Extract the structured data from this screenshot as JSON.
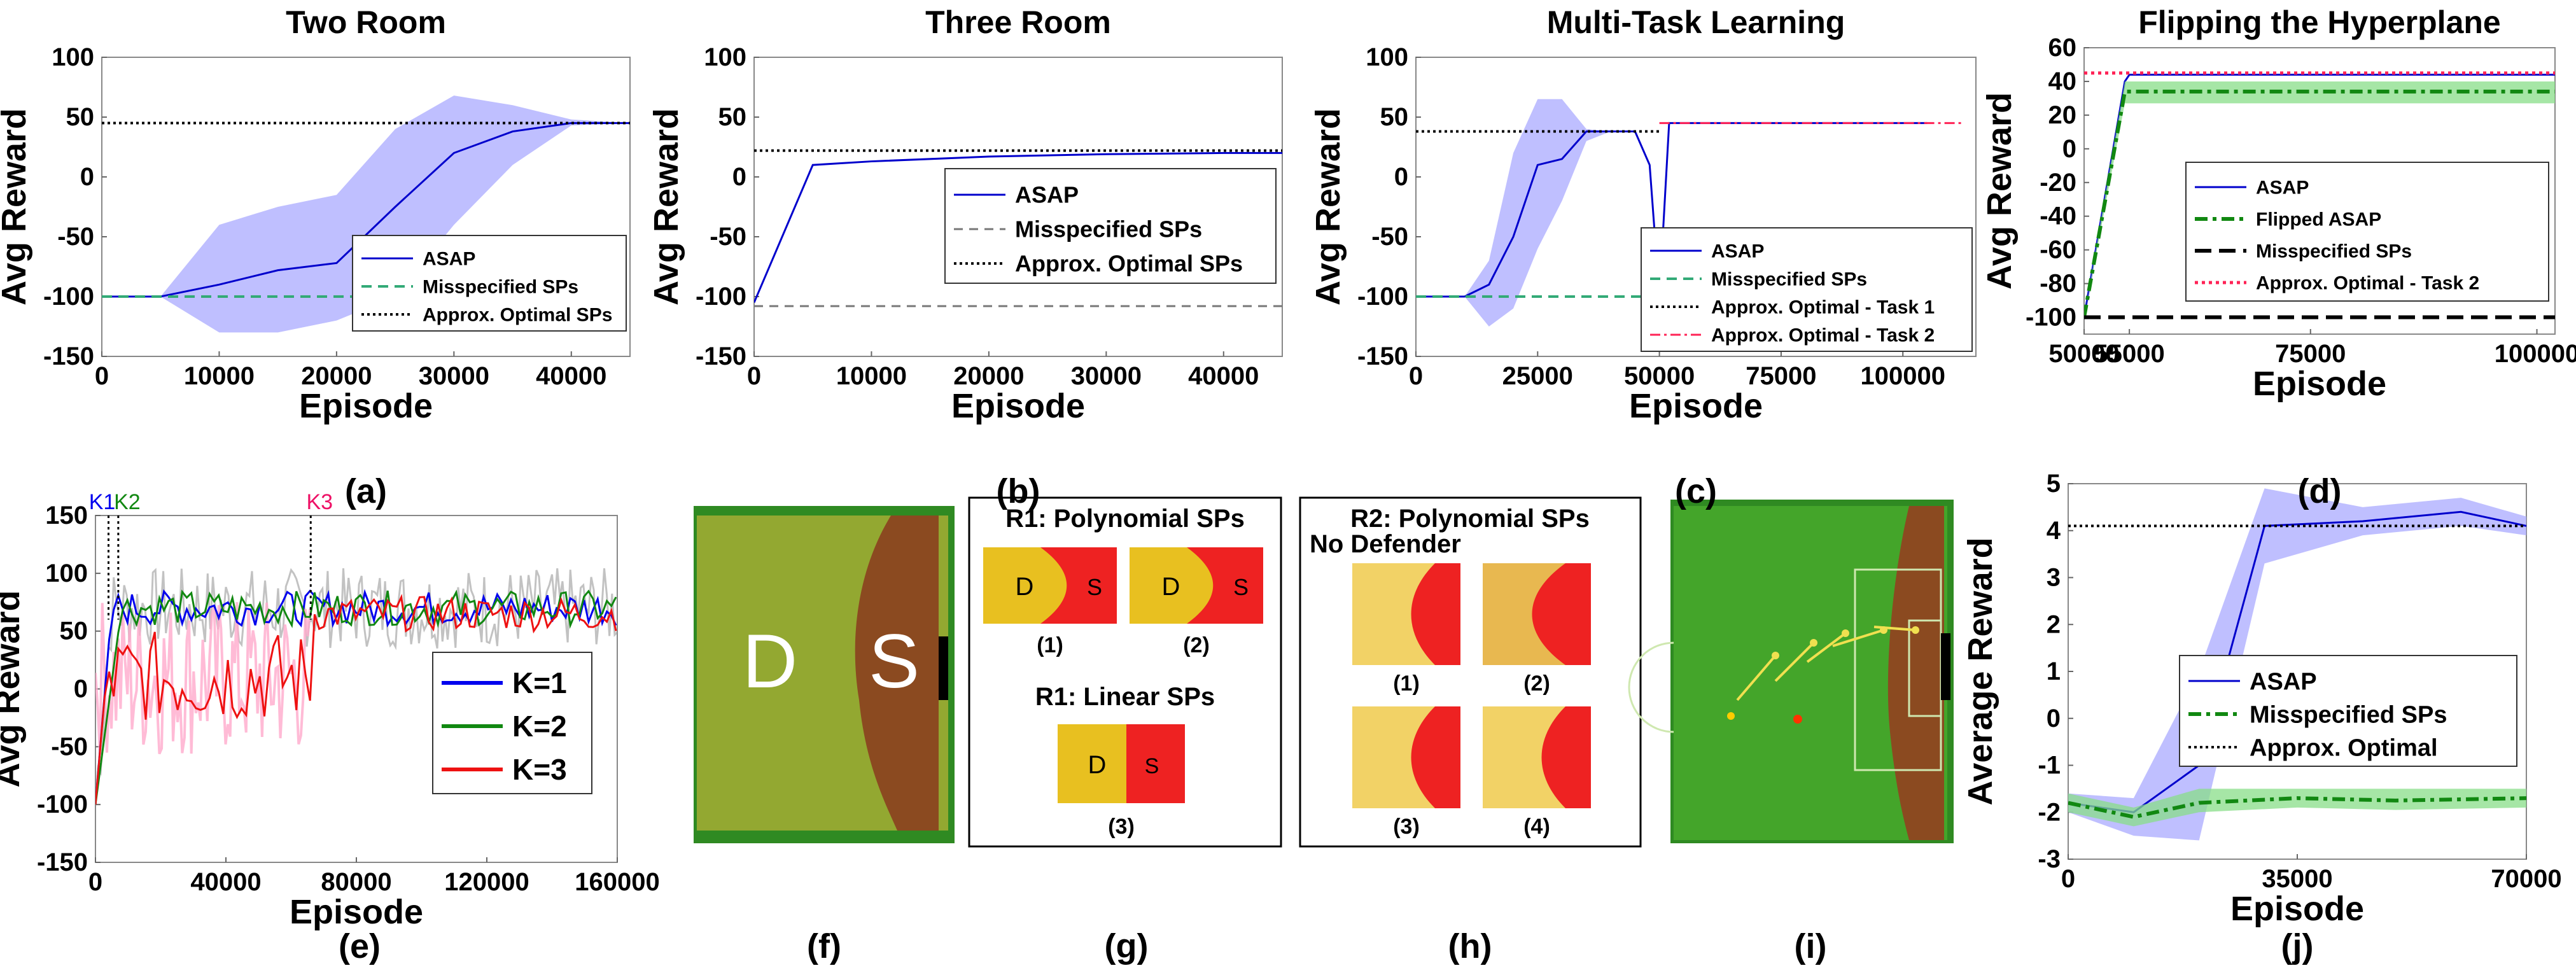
{
  "panel_letters": [
    "(a)",
    "(b)",
    "(c)",
    "(d)",
    "(e)",
    "(f)",
    "(g)",
    "(h)",
    "(i)",
    "(j)"
  ],
  "colors": {
    "asap": "#0000cc",
    "asap_band": "#aaaaff",
    "misspecified_dash": "#33aa77",
    "optimal": "#000000",
    "task2": "#ff2255",
    "flipped": "#118811",
    "flipped_band": "#88dd88",
    "k1": "#0000ee",
    "k2": "#118811",
    "k3": "#ee1111",
    "k3_band": "#ffaacc",
    "field_green": "#44aa22",
    "domain_d_yellow": "#e8c020",
    "domain_s_brown": "#8b4a20",
    "domain_s_red": "#ee2222",
    "soft_yellow": "#f2d266"
  },
  "chart_data": [
    {
      "id": "a",
      "type": "line",
      "title": "Two Room",
      "xlabel": "Episode",
      "ylabel": "Avg Reward",
      "xlim": [
        0,
        45000
      ],
      "ylim": [
        -150,
        100
      ],
      "xticks": [
        0,
        10000,
        20000,
        30000,
        40000
      ],
      "yticks": [
        -150,
        -100,
        -50,
        0,
        50,
        100
      ],
      "legend": [
        "ASAP",
        "Misspecified SPs",
        "Approx. Optimal SPs"
      ],
      "legend_position": "bottom-right",
      "series": [
        {
          "name": "ASAP",
          "style": "solid-blue-band",
          "x": [
            0,
            5000,
            10000,
            15000,
            20000,
            25000,
            30000,
            35000,
            40000,
            45000
          ],
          "y": [
            -100,
            -100,
            -90,
            -78,
            -72,
            -25,
            20,
            38,
            45,
            45
          ],
          "lower": [
            -100,
            -100,
            -130,
            -130,
            -120,
            -100,
            -40,
            10,
            43,
            45
          ],
          "upper": [
            -100,
            -100,
            -40,
            -25,
            -15,
            40,
            68,
            60,
            48,
            45
          ]
        },
        {
          "name": "Misspecified SPs",
          "style": "dashed-green",
          "x": [
            0,
            25000
          ],
          "y": [
            -100,
            -100
          ]
        },
        {
          "name": "Approx. Optimal SPs",
          "style": "dotted-black",
          "x": [
            0,
            45000
          ],
          "y": [
            45,
            45
          ]
        }
      ]
    },
    {
      "id": "b",
      "type": "line",
      "title": "Three Room",
      "xlabel": "Episode",
      "ylabel": "Avg Reward",
      "xlim": [
        0,
        45000
      ],
      "ylim": [
        -150,
        100
      ],
      "xticks": [
        0,
        10000,
        20000,
        30000,
        40000
      ],
      "yticks": [
        -150,
        -100,
        -50,
        0,
        50,
        100
      ],
      "legend": [
        "ASAP",
        "Misspecified SPs",
        "Approx. Optimal SPs"
      ],
      "legend_position": "center-right",
      "series": [
        {
          "name": "ASAP",
          "style": "solid-blue",
          "x": [
            0,
            5000,
            10000,
            20000,
            30000,
            40000,
            45000
          ],
          "y": [
            -105,
            10,
            13,
            17,
            19,
            20,
            20
          ]
        },
        {
          "name": "Misspecified SPs",
          "style": "dashed-gray",
          "x": [
            0,
            45000
          ],
          "y": [
            -108,
            -108
          ]
        },
        {
          "name": "Approx. Optimal SPs",
          "style": "dotted-black",
          "x": [
            0,
            45000
          ],
          "y": [
            22,
            22
          ]
        }
      ]
    },
    {
      "id": "c",
      "type": "line",
      "title": "Multi-Task Learning",
      "xlabel": "Episode",
      "ylabel": "Avg Reward",
      "xlim": [
        0,
        115000
      ],
      "ylim": [
        -150,
        100
      ],
      "xticks": [
        0,
        25000,
        50000,
        75000,
        100000
      ],
      "yticks": [
        -150,
        -100,
        -50,
        0,
        50,
        100
      ],
      "legend": [
        "ASAP",
        "Misspecified SPs",
        "Approx. Optimal - Task 1",
        "Approx. Optimal - Task 2"
      ],
      "legend_position": "bottom-right",
      "series": [
        {
          "name": "ASAP",
          "style": "solid-blue-band",
          "x": [
            0,
            10000,
            15000,
            20000,
            25000,
            30000,
            35000,
            40000,
            45000,
            48000,
            50000,
            52000,
            55000,
            75000,
            100000,
            105000
          ],
          "y": [
            -100,
            -100,
            -90,
            -50,
            10,
            15,
            38,
            38,
            38,
            10,
            -100,
            45,
            45,
            45,
            45,
            45
          ],
          "lower": [
            -100,
            -100,
            -125,
            -110,
            -60,
            -20,
            30,
            38,
            38,
            10,
            -100,
            45,
            45,
            45,
            45,
            45
          ],
          "upper": [
            -100,
            -100,
            -70,
            20,
            65,
            65,
            40,
            38,
            38,
            10,
            -100,
            45,
            45,
            45,
            45,
            45
          ]
        },
        {
          "name": "Misspecified SPs",
          "style": "dashed-green",
          "x": [
            0,
            52000
          ],
          "y": [
            -100,
            -100
          ]
        },
        {
          "name": "Approx. Optimal - Task 1",
          "style": "dotted-black",
          "x": [
            0,
            50000
          ],
          "y": [
            38,
            38
          ]
        },
        {
          "name": "Approx. Optimal - Task 2",
          "style": "dashdot-red",
          "x": [
            50000,
            112000
          ],
          "y": [
            45,
            45
          ]
        }
      ]
    },
    {
      "id": "d",
      "type": "line",
      "title": "Flipping the Hyperplane",
      "xlabel": "Episode",
      "ylabel": "Avg Reward",
      "xlim": [
        50000,
        102000
      ],
      "ylim": [
        -110,
        60
      ],
      "xticks": [
        50000,
        55000,
        75000,
        100000
      ],
      "yticks": [
        -100,
        -80,
        -60,
        -40,
        -20,
        0,
        20,
        40,
        60
      ],
      "legend": [
        "ASAP",
        "Flipped ASAP",
        "Misspecified SPs",
        "Approx. Optimal - Task 2"
      ],
      "legend_position": "center-right",
      "series": [
        {
          "name": "ASAP",
          "style": "solid-blue",
          "x": [
            50000,
            54500,
            55000,
            102000
          ],
          "y": [
            -100,
            40,
            44,
            44
          ]
        },
        {
          "name": "Flipped ASAP",
          "style": "dashdot-green-band",
          "x": [
            50000,
            54500,
            55000,
            102000
          ],
          "y": [
            -100,
            34,
            34,
            34
          ],
          "lower": [
            -100,
            27,
            27,
            27
          ],
          "upper": [
            -100,
            40,
            40,
            40
          ]
        },
        {
          "name": "Misspecified SPs",
          "style": "dashed-black",
          "x": [
            50000,
            102000
          ],
          "y": [
            -100,
            -100
          ]
        },
        {
          "name": "Approx. Optimal - Task 2",
          "style": "dotted-red",
          "x": [
            50000,
            102000
          ],
          "y": [
            45,
            45
          ]
        }
      ]
    },
    {
      "id": "e",
      "type": "line",
      "xlabel": "Episode",
      "ylabel": "Avg Reward",
      "xlim": [
        0,
        160000
      ],
      "ylim": [
        -150,
        150
      ],
      "xticks": [
        0,
        40000,
        80000,
        120000,
        160000
      ],
      "yticks": [
        -150,
        -100,
        -50,
        0,
        50,
        100,
        150
      ],
      "legend": [
        "K=1",
        "K=2",
        "K=3"
      ],
      "legend_position": "bottom-right",
      "markers": [
        {
          "label": "K1",
          "x": 4000,
          "color": "#0000ee"
        },
        {
          "label": "K2",
          "x": 7000,
          "color": "#118811"
        },
        {
          "label": "K3",
          "x": 66000,
          "color": "#ee1166"
        }
      ],
      "series": [
        {
          "name": "K=1",
          "style": "noisy-blue",
          "base": 70,
          "noise": 15,
          "start": -100,
          "rise_end": 5000,
          "end": 160000
        },
        {
          "name": "K=2",
          "style": "noisy-green",
          "base": 70,
          "noise": 15,
          "start": -100,
          "rise_end": 8000,
          "end": 160000
        },
        {
          "name": "K=3",
          "style": "noisy-red",
          "base": 10,
          "noise": 40,
          "start": -100,
          "switch": 66000,
          "after": 65,
          "end": 160000
        }
      ]
    },
    {
      "id": "j",
      "type": "line",
      "xlabel": "Episode",
      "ylabel": "Average Reward",
      "xlim": [
        0,
        70000
      ],
      "ylim": [
        -3,
        5
      ],
      "xticks": [
        0,
        35000,
        70000
      ],
      "yticks": [
        -3,
        -2,
        -1,
        0,
        1,
        2,
        3,
        4,
        5
      ],
      "legend": [
        "ASAP",
        "Misspecified SPs",
        "Approx. Optimal"
      ],
      "legend_position": "center-right",
      "series": [
        {
          "name": "ASAP",
          "style": "solid-blue-band",
          "x": [
            0,
            10000,
            20000,
            30000,
            45000,
            60000,
            70000
          ],
          "y": [
            -1.8,
            -2.0,
            -1.0,
            4.1,
            4.2,
            4.4,
            4.1
          ],
          "lower": [
            -2.0,
            -2.5,
            -2.6,
            3.3,
            3.9,
            4.1,
            3.9
          ],
          "upper": [
            -1.6,
            -1.7,
            1.0,
            4.9,
            4.5,
            4.7,
            4.3
          ]
        },
        {
          "name": "Misspecified SPs",
          "style": "dashdot-green-band",
          "x": [
            0,
            10000,
            20000,
            35000,
            50000,
            70000
          ],
          "y": [
            -1.8,
            -2.1,
            -1.8,
            -1.7,
            -1.75,
            -1.7
          ],
          "lower": [
            -2.0,
            -2.3,
            -2.0,
            -1.9,
            -1.95,
            -1.9
          ],
          "upper": [
            -1.6,
            -1.9,
            -1.5,
            -1.5,
            -1.5,
            -1.5
          ]
        },
        {
          "name": "Approx. Optimal",
          "style": "dotted-black",
          "x": [
            0,
            70000
          ],
          "y": [
            4.1,
            4.1
          ]
        }
      ]
    }
  ],
  "panel_f": {
    "left_label": "D",
    "right_label": "S"
  },
  "panel_g": {
    "title_poly": "R1: Polynomial SPs",
    "title_linear": "R1: Linear SPs",
    "cells": [
      {
        "d": "D",
        "s": "S",
        "caption": "(1)"
      },
      {
        "d": "D",
        "s": "S",
        "caption": "(2)"
      },
      {
        "d": "D",
        "s": "S",
        "caption": "(3)"
      }
    ]
  },
  "panel_h": {
    "title_line1": "R2: Polynomial SPs",
    "title_line2": "No Defender",
    "captions": [
      "(1)",
      "(2)",
      "(3)",
      "(4)"
    ]
  }
}
